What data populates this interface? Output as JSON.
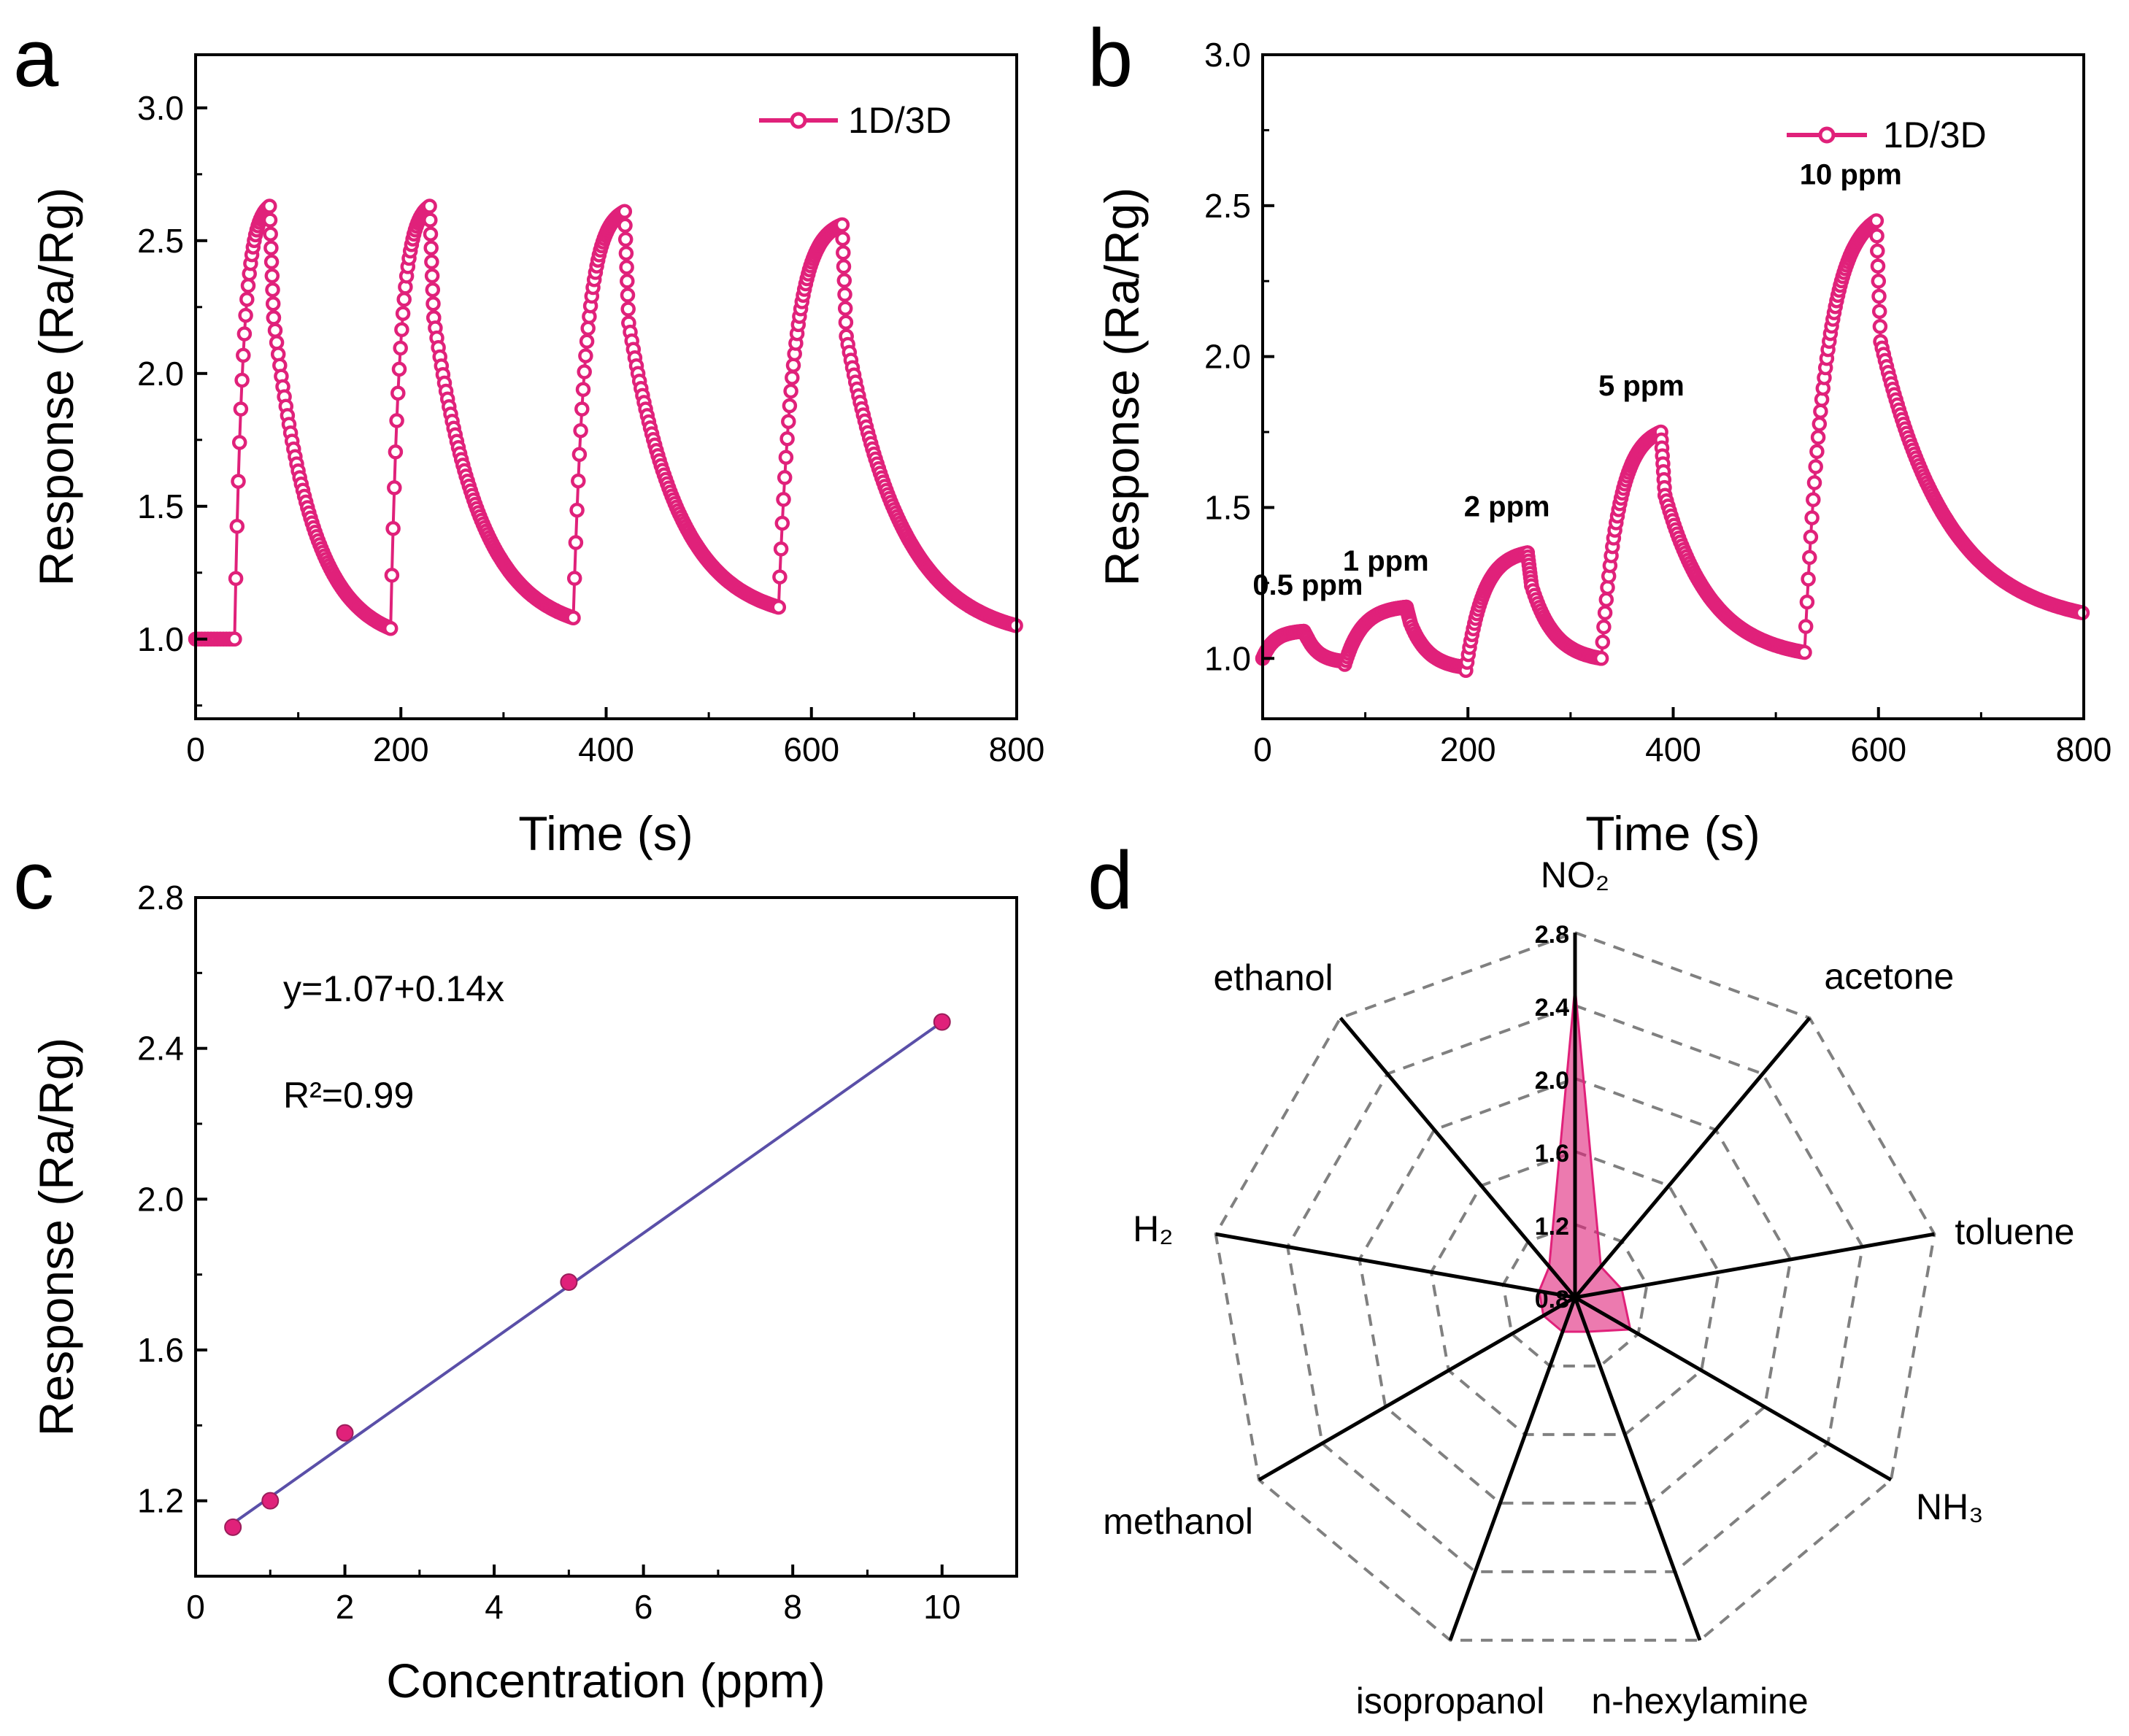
{
  "figure": {
    "colors": {
      "series": "#e0217a",
      "fill": "#e0217a",
      "fit": "#5a4fa8",
      "axis": "#000000",
      "grid": "#808080"
    }
  },
  "chart_data": [
    {
      "panel_label": "a",
      "type": "line",
      "title": "",
      "xlabel": "Time (s)",
      "ylabel": "Response (Ra/Rg)",
      "xlim": [
        0,
        800
      ],
      "ylim": [
        0.7,
        3.2
      ],
      "xticks": [
        0,
        200,
        400,
        600,
        800
      ],
      "yticks": [
        1.0,
        1.5,
        2.0,
        2.5,
        3.0
      ],
      "xtick_labels": [
        "0",
        "200",
        "400",
        "600",
        "800"
      ],
      "ytick_labels": [
        "1.0",
        "1.5",
        "2.0",
        "2.5",
        "3.0"
      ],
      "legend": "1D/3D",
      "legend_position": "top-right",
      "cycles": [
        {
          "start": 38,
          "peak_time": 72,
          "peak": 2.63,
          "recovered": 1.04
        },
        {
          "start": 190,
          "peak_time": 228,
          "peak": 2.63,
          "recovered": 1.08
        },
        {
          "start": 368,
          "peak_time": 418,
          "peak": 2.61,
          "recovered": 1.12
        },
        {
          "start": 568,
          "peak_time": 630,
          "peak": 2.56,
          "recovered": 1.05
        }
      ],
      "baseline": 1.0
    },
    {
      "panel_label": "b",
      "type": "line",
      "title": "",
      "xlabel": "Time (s)",
      "ylabel": "Response (Ra/Rg)",
      "xlim": [
        0,
        800
      ],
      "ylim": [
        0.8,
        3.0
      ],
      "xticks": [
        0,
        200,
        400,
        600,
        800
      ],
      "yticks": [
        1.0,
        1.5,
        2.0,
        2.5,
        3.0
      ],
      "xtick_labels": [
        "0",
        "200",
        "400",
        "600",
        "800"
      ],
      "ytick_labels": [
        "1.0",
        "1.5",
        "2.0",
        "2.5",
        "3.0"
      ],
      "legend": "1D/3D",
      "legend_position": "top-right",
      "pulses": [
        {
          "label": "0.5 ppm",
          "start": 0,
          "end": 40,
          "base": 1.0,
          "peak": 1.09,
          "recovered": 0.99
        },
        {
          "label": "1 ppm",
          "start": 80,
          "end": 140,
          "base": 0.98,
          "peak": 1.17,
          "recovered": 0.97
        },
        {
          "label": "2 ppm",
          "start": 198,
          "end": 258,
          "base": 0.96,
          "peak": 1.35,
          "recovered": 1.0
        },
        {
          "label": "5 ppm",
          "start": 330,
          "end": 388,
          "base": 1.0,
          "peak": 1.75,
          "recovered": 1.02
        },
        {
          "label": "10 ppm",
          "start": 528,
          "end": 598,
          "base": 1.02,
          "peak": 2.45,
          "recovered": 1.15
        }
      ]
    },
    {
      "panel_label": "c",
      "type": "scatter",
      "title": "",
      "xlabel": "Concentration (ppm)",
      "ylabel": "Response (Ra/Rg)",
      "xlim": [
        0,
        11
      ],
      "ylim": [
        1.0,
        2.8
      ],
      "xticks": [
        0,
        2,
        4,
        6,
        8,
        10
      ],
      "yticks": [
        1.2,
        1.6,
        2.0,
        2.4,
        2.8
      ],
      "xtick_labels": [
        "0",
        "2",
        "4",
        "6",
        "8",
        "10"
      ],
      "ytick_labels": [
        "1.2",
        "1.6",
        "2.0",
        "2.4",
        "2.8"
      ],
      "x": [
        0.5,
        1,
        2,
        5,
        10
      ],
      "y": [
        1.13,
        1.2,
        1.38,
        1.78,
        2.47
      ],
      "fit": {
        "intercept": 1.07,
        "slope": 0.14,
        "x_range": [
          0.5,
          10
        ]
      },
      "equation": "y=1.07+0.14x",
      "r2": "R²=0.99"
    },
    {
      "panel_label": "d",
      "type": "radar",
      "title": "",
      "axes": [
        "NO₂",
        "acetone",
        "toluene",
        "NH₃",
        "n-hexylamine",
        "isopropanol",
        "methanol",
        "H₂",
        "ethanol"
      ],
      "values": [
        2.5,
        1.02,
        1.06,
        1.15,
        1.0,
        1.0,
        1.0,
        1.0,
        1.02
      ],
      "rmin": 0.8,
      "rmax": 2.8,
      "ring_values": [
        0.8,
        1.2,
        1.6,
        2.0,
        2.4,
        2.8
      ],
      "ring_labels": [
        "0.8",
        "1.2",
        "1.6",
        "2.0",
        "2.4",
        "2.8"
      ]
    }
  ]
}
